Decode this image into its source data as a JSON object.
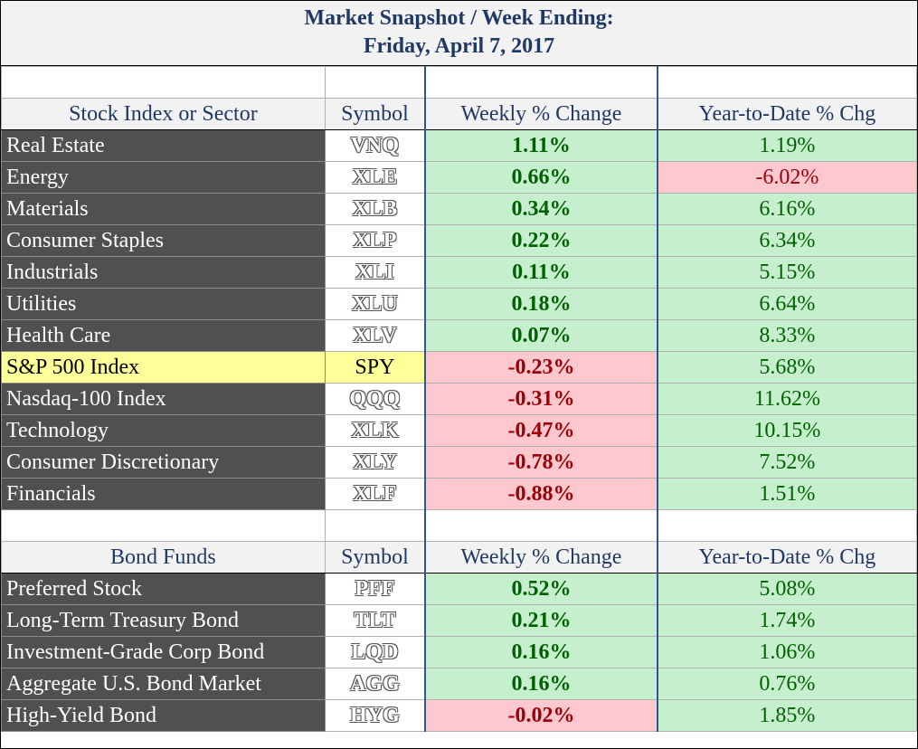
{
  "title": {
    "line1": "Market Snapshot / Week Ending:",
    "line2": "Friday, April 7, 2017"
  },
  "stocks": {
    "headers": {
      "name": "Stock Index or Sector",
      "symbol": "Symbol",
      "weekly": "Weekly % Change",
      "ytd": "Year-to-Date % Chg"
    },
    "rows": [
      {
        "name": "Real Estate",
        "symbol": "VNQ",
        "weekly": "1.11%",
        "ytd": "1.19%"
      },
      {
        "name": "Energy",
        "symbol": "XLE",
        "weekly": "0.66%",
        "ytd": "-6.02%"
      },
      {
        "name": "Materials",
        "symbol": "XLB",
        "weekly": "0.34%",
        "ytd": "6.16%"
      },
      {
        "name": "Consumer Staples",
        "symbol": "XLP",
        "weekly": "0.22%",
        "ytd": "6.34%"
      },
      {
        "name": "Industrials",
        "symbol": "XLI",
        "weekly": "0.11%",
        "ytd": "5.15%"
      },
      {
        "name": "Utilities",
        "symbol": "XLU",
        "weekly": "0.18%",
        "ytd": "6.64%"
      },
      {
        "name": "Health Care",
        "symbol": "XLV",
        "weekly": "0.07%",
        "ytd": "8.33%"
      },
      {
        "name": "S&P 500 Index",
        "symbol": "SPY",
        "weekly": "-0.23%",
        "ytd": "5.68%"
      },
      {
        "name": "Nasdaq-100 Index",
        "symbol": "QQQ",
        "weekly": "-0.31%",
        "ytd": "11.62%"
      },
      {
        "name": "Technology",
        "symbol": "XLK",
        "weekly": "-0.47%",
        "ytd": "10.15%"
      },
      {
        "name": "Consumer Discretionary",
        "symbol": "XLY",
        "weekly": "-0.78%",
        "ytd": "7.52%"
      },
      {
        "name": "Financials",
        "symbol": "XLF",
        "weekly": "-0.88%",
        "ytd": "1.51%"
      }
    ]
  },
  "bonds": {
    "headers": {
      "name": "Bond Funds",
      "symbol": "Symbol",
      "weekly": "Weekly % Change",
      "ytd": "Year-to-Date % Chg"
    },
    "rows": [
      {
        "name": "Preferred Stock",
        "symbol": "PFF",
        "weekly": "0.52%",
        "ytd": "5.08%"
      },
      {
        "name": "Long-Term Treasury Bond",
        "symbol": "TLT",
        "weekly": "0.21%",
        "ytd": "1.74%"
      },
      {
        "name": "Investment-Grade Corp Bond",
        "symbol": "LQD",
        "weekly": "0.16%",
        "ytd": "1.06%"
      },
      {
        "name": "Aggregate U.S. Bond Market",
        "symbol": "AGG",
        "weekly": "0.16%",
        "ytd": "0.76%"
      },
      {
        "name": "High-Yield Bond",
        "symbol": "HYG",
        "weekly": "-0.02%",
        "ytd": "1.85%"
      }
    ]
  },
  "colors": {
    "positive_fill": "#c6efce",
    "positive_text": "#006100",
    "negative_fill": "#ffc7ce",
    "negative_text": "#9c0006",
    "highlight_fill": "#ffff99",
    "sector_fill": "#505050",
    "title_text": "#1f3864"
  }
}
